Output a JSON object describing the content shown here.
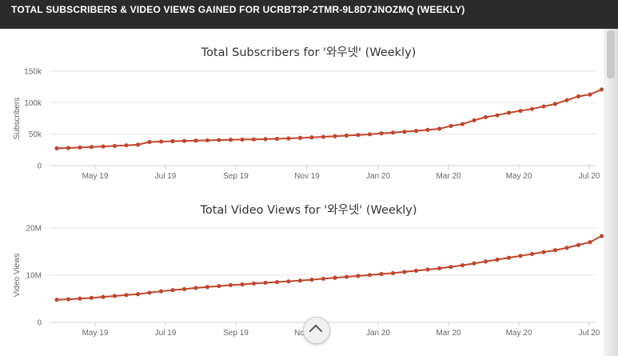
{
  "header": {
    "title": "TOTAL SUBSCRIBERS & VIDEO VIEWS GAINED FOR UCRBT3P-2TMR-9L8D7JNOZMQ (WEEKLY)"
  },
  "colors": {
    "series": "#c0462c",
    "grid": "#e4e4e4",
    "header_bg": "#2b2b2b"
  },
  "scroll_top_icon": "chevron-up-icon",
  "chart_data": [
    {
      "type": "line",
      "title": "Total Subscribers for '와우넷' (Weekly)",
      "xlabel": "",
      "ylabel": "Subscribers",
      "x_ticks": [
        "May 19",
        "Jul 19",
        "Sep 19",
        "Nov 19",
        "Jan 20",
        "Mar 20",
        "May 20",
        "Jul 20"
      ],
      "y_ticks": [
        "0",
        "50k",
        "100k",
        "150k"
      ],
      "ylim": [
        0,
        150000
      ],
      "grid": true,
      "legend": "none",
      "series": [
        {
          "values": [
            27500,
            28000,
            28800,
            29600,
            30400,
            31300,
            32200,
            33200,
            37500,
            38200,
            38800,
            39200,
            39700,
            40100,
            40600,
            41000,
            41400,
            41700,
            42100,
            42600,
            43200,
            44000,
            44800,
            45700,
            46700,
            47700,
            48700,
            49800,
            51200,
            52500,
            53800,
            55200,
            56800,
            58500,
            63000,
            66000,
            72000,
            77000,
            80000,
            84000,
            87000,
            90000,
            94000,
            98000,
            104000,
            110000,
            113000,
            121000
          ]
        }
      ]
    },
    {
      "type": "line",
      "title": "Total Video Views for '와우넷' (Weekly)",
      "xlabel": "",
      "ylabel": "Video Views",
      "x_ticks": [
        "May 19",
        "Jul 19",
        "Sep 19",
        "Nov 19",
        "Jan 20",
        "Mar 20",
        "May 20",
        "Jul 20"
      ],
      "y_ticks": [
        "0",
        "10M",
        "20M"
      ],
      "ylim": [
        0,
        20000000
      ],
      "grid": true,
      "legend": "none",
      "series": [
        {
          "values": [
            4800000,
            4900000,
            5050000,
            5200000,
            5400000,
            5600000,
            5800000,
            6000000,
            6300000,
            6600000,
            6850000,
            7050000,
            7300000,
            7500000,
            7700000,
            7900000,
            8050000,
            8250000,
            8400000,
            8550000,
            8700000,
            8850000,
            9050000,
            9250000,
            9450000,
            9650000,
            9850000,
            10050000,
            10250000,
            10450000,
            10700000,
            10950000,
            11200000,
            11450000,
            11750000,
            12100000,
            12500000,
            12900000,
            13300000,
            13700000,
            14100000,
            14500000,
            14900000,
            15300000,
            15800000,
            16400000,
            17000000,
            18300000
          ]
        }
      ]
    }
  ]
}
